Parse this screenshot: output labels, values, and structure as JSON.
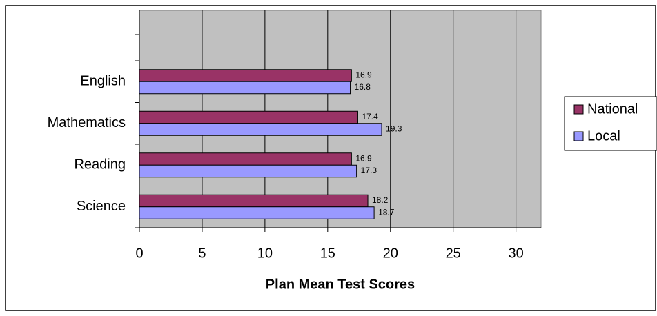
{
  "chart_data": {
    "type": "hbar",
    "xlabel": "Plan Mean Test Scores",
    "categories": [
      "English",
      "Mathematics",
      "Reading",
      "Science"
    ],
    "series": [
      {
        "name": "National",
        "color": "#993366",
        "values": [
          16.9,
          17.4,
          16.9,
          18.2
        ]
      },
      {
        "name": "Local",
        "color": "#9999ff",
        "values": [
          16.8,
          19.3,
          17.3,
          18.7
        ]
      }
    ],
    "xlim": [
      0,
      32
    ],
    "xticks": [
      0,
      5,
      10,
      15,
      20,
      25,
      30
    ],
    "grid": true,
    "legend": "right"
  }
}
